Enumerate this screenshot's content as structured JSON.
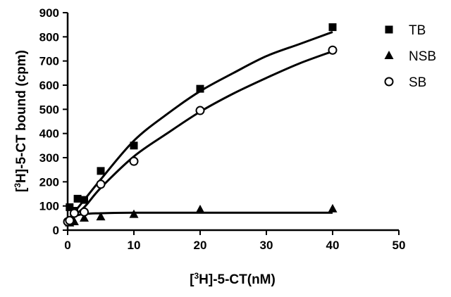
{
  "chart_data": {
    "type": "scatter",
    "xlabel": {
      "open": "[",
      "sup": "3",
      "rest": "H]-5-CT(nM)"
    },
    "ylabel": {
      "open": "[",
      "sup": "3",
      "rest": "H]-5-CT  bound (cpm)"
    },
    "xlim": [
      0,
      50
    ],
    "ylim": [
      0,
      900
    ],
    "x_ticks": [
      "0",
      "10",
      "20",
      "30",
      "40",
      "50"
    ],
    "y_ticks": [
      "0",
      "100",
      "200",
      "300",
      "400",
      "500",
      "600",
      "700",
      "800",
      "900"
    ],
    "grid": false,
    "legend_position": "top-right",
    "series": [
      {
        "name": "TB",
        "marker": "square",
        "fit": "hyperbolic",
        "points": [
          [
            0.3,
            95
          ],
          [
            1,
            80
          ],
          [
            1.5,
            130
          ],
          [
            2.5,
            125
          ],
          [
            5,
            245
          ],
          [
            10,
            350
          ],
          [
            20,
            585
          ],
          [
            40,
            840
          ]
        ]
      },
      {
        "name": "NSB",
        "marker": "triangle",
        "fit": "flat",
        "points": [
          [
            0.3,
            30
          ],
          [
            1,
            35
          ],
          [
            2.5,
            50
          ],
          [
            5,
            55
          ],
          [
            10,
            65
          ],
          [
            20,
            85
          ],
          [
            40,
            88
          ]
        ]
      },
      {
        "name": "SB",
        "marker": "circle-open",
        "fit": "hyperbolic",
        "points": [
          [
            0,
            35
          ],
          [
            0.3,
            40
          ],
          [
            1,
            70
          ],
          [
            2.5,
            75
          ],
          [
            5,
            190
          ],
          [
            10,
            285
          ],
          [
            20,
            495
          ],
          [
            40,
            745
          ]
        ]
      }
    ],
    "fit_curves": [
      {
        "series": "TB",
        "points": [
          [
            0,
            40
          ],
          [
            2.5,
            125
          ],
          [
            5,
            210
          ],
          [
            10,
            370
          ],
          [
            15,
            480
          ],
          [
            20,
            575
          ],
          [
            25,
            650
          ],
          [
            30,
            720
          ],
          [
            35,
            770
          ],
          [
            40,
            820
          ]
        ]
      },
      {
        "series": "SB",
        "points": [
          [
            0,
            40
          ],
          [
            2.5,
            95
          ],
          [
            5,
            175
          ],
          [
            10,
            305
          ],
          [
            15,
            400
          ],
          [
            20,
            490
          ],
          [
            25,
            565
          ],
          [
            30,
            630
          ],
          [
            35,
            690
          ],
          [
            40,
            740
          ]
        ]
      },
      {
        "series": "NSB",
        "points": [
          [
            0,
            45
          ],
          [
            2,
            65
          ],
          [
            5,
            70
          ],
          [
            10,
            72
          ],
          [
            20,
            72
          ],
          [
            40,
            72
          ]
        ]
      }
    ]
  }
}
